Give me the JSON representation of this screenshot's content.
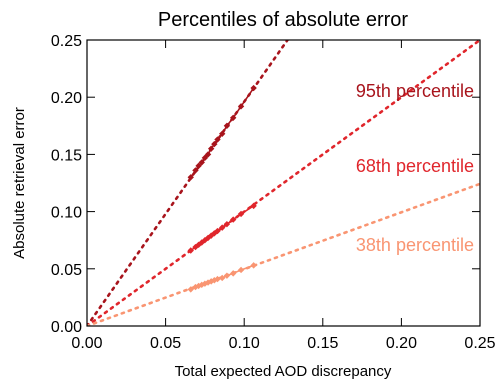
{
  "chart_data": {
    "type": "scatter",
    "title": "Percentiles of absolute error",
    "xlabel": "Total expected AOD discrepancy",
    "ylabel": "Absolute retrieval error",
    "xlim": [
      0.0,
      0.25
    ],
    "ylim": [
      0.0,
      0.25
    ],
    "x_ticks": [
      "0.00",
      "0.05",
      "0.10",
      "0.15",
      "0.20",
      "0.25"
    ],
    "y_ticks": [
      "0.00",
      "0.05",
      "0.10",
      "0.15",
      "0.20",
      "0.25"
    ],
    "x_tick_values": [
      0.0,
      0.05,
      0.1,
      0.15,
      0.2,
      0.25
    ],
    "y_tick_values": [
      0.0,
      0.05,
      0.1,
      0.15,
      0.2,
      0.25
    ],
    "grid": false,
    "legend": "inline labels at right",
    "series": [
      {
        "name": "95th percentile",
        "color": "#a8141c",
        "fit_slope": 1.96,
        "x": [
          0.066,
          0.069,
          0.071,
          0.073,
          0.075,
          0.077,
          0.079,
          0.081,
          0.083,
          0.086,
          0.089,
          0.093,
          0.098,
          0.106
        ],
        "y": [
          0.13,
          0.136,
          0.14,
          0.143,
          0.147,
          0.15,
          0.155,
          0.159,
          0.163,
          0.168,
          0.175,
          0.182,
          0.192,
          0.208
        ]
      },
      {
        "name": "68th percentile",
        "color": "#e0262c",
        "fit_slope": 1.0,
        "x": [
          0.066,
          0.069,
          0.071,
          0.073,
          0.075,
          0.077,
          0.079,
          0.081,
          0.083,
          0.086,
          0.089,
          0.093,
          0.098,
          0.106
        ],
        "y": [
          0.066,
          0.069,
          0.071,
          0.073,
          0.075,
          0.077,
          0.079,
          0.081,
          0.083,
          0.086,
          0.089,
          0.093,
          0.098,
          0.105
        ]
      },
      {
        "name": "38th percentile",
        "color": "#f99572",
        "fit_slope": 0.497,
        "x": [
          0.066,
          0.069,
          0.071,
          0.073,
          0.075,
          0.077,
          0.079,
          0.081,
          0.083,
          0.086,
          0.089,
          0.093,
          0.098,
          0.106
        ],
        "y": [
          0.032,
          0.034,
          0.035,
          0.036,
          0.037,
          0.038,
          0.039,
          0.04,
          0.041,
          0.042,
          0.044,
          0.046,
          0.049,
          0.053
        ]
      }
    ]
  }
}
